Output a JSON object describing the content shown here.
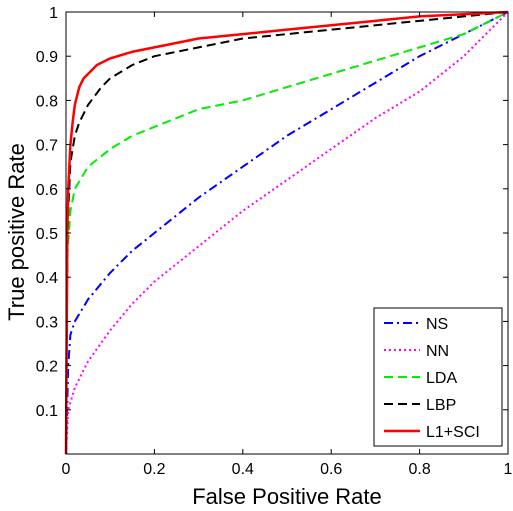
{
  "chart_data": {
    "type": "line",
    "xlabel": "False Positive Rate",
    "ylabel": "True positive Rate",
    "xlim": [
      0,
      1
    ],
    "ylim": [
      0,
      1
    ],
    "x_ticks": [
      0,
      0.2,
      0.4,
      0.6,
      0.8,
      1
    ],
    "y_ticks": [
      0.1,
      0.2,
      0.3,
      0.4,
      0.5,
      0.6,
      0.7,
      0.8,
      0.9,
      1
    ],
    "x_tick_labels": [
      "0",
      "0.2",
      "0.4",
      "0.6",
      "0.8",
      "1"
    ],
    "y_tick_labels": [
      "0.1",
      "0.2",
      "0.3",
      "0.4",
      "0.5",
      "0.6",
      "0.7",
      "0.8",
      "0.9",
      "1"
    ],
    "grid": false,
    "legend_position": "bottom-right",
    "series": [
      {
        "name": "NS",
        "color": "#0000ff",
        "style": "dash-dot",
        "x": [
          0,
          0.005,
          0.01,
          0.02,
          0.05,
          0.1,
          0.15,
          0.2,
          0.3,
          0.4,
          0.5,
          0.6,
          0.7,
          0.8,
          0.9,
          1
        ],
        "y": [
          0,
          0.2,
          0.27,
          0.3,
          0.35,
          0.41,
          0.46,
          0.5,
          0.58,
          0.65,
          0.72,
          0.78,
          0.84,
          0.9,
          0.95,
          1
        ]
      },
      {
        "name": "NN",
        "color": "#ff00ff",
        "style": "dotted",
        "x": [
          0,
          0.005,
          0.02,
          0.05,
          0.1,
          0.15,
          0.2,
          0.3,
          0.4,
          0.5,
          0.6,
          0.7,
          0.8,
          0.9,
          1
        ],
        "y": [
          0,
          0.1,
          0.15,
          0.21,
          0.28,
          0.34,
          0.39,
          0.47,
          0.55,
          0.62,
          0.69,
          0.76,
          0.82,
          0.9,
          1
        ]
      },
      {
        "name": "LDA",
        "color": "#00ee00",
        "style": "dashed",
        "x": [
          0,
          0.003,
          0.01,
          0.02,
          0.05,
          0.1,
          0.15,
          0.2,
          0.3,
          0.4,
          0.5,
          0.6,
          0.7,
          0.8,
          0.9,
          1
        ],
        "y": [
          0,
          0.45,
          0.55,
          0.6,
          0.65,
          0.69,
          0.72,
          0.74,
          0.78,
          0.8,
          0.83,
          0.86,
          0.89,
          0.92,
          0.95,
          1
        ]
      },
      {
        "name": "LBP",
        "color": "#000000",
        "style": "dashed",
        "x": [
          0,
          0.003,
          0.01,
          0.02,
          0.03,
          0.05,
          0.08,
          0.1,
          0.15,
          0.2,
          0.3,
          0.4,
          0.5,
          0.6,
          0.7,
          0.8,
          0.9,
          1
        ],
        "y": [
          0,
          0.5,
          0.66,
          0.72,
          0.75,
          0.79,
          0.83,
          0.85,
          0.88,
          0.9,
          0.92,
          0.94,
          0.95,
          0.96,
          0.97,
          0.98,
          0.99,
          1
        ]
      },
      {
        "name": "L1+SCI",
        "color": "#ff0000",
        "style": "solid",
        "x": [
          0,
          0.003,
          0.005,
          0.01,
          0.015,
          0.02,
          0.03,
          0.04,
          0.05,
          0.07,
          0.1,
          0.15,
          0.2,
          0.3,
          0.4,
          0.5,
          0.6,
          0.7,
          0.8,
          0.9,
          1
        ],
        "y": [
          0,
          0.5,
          0.6,
          0.7,
          0.75,
          0.79,
          0.83,
          0.85,
          0.86,
          0.88,
          0.895,
          0.91,
          0.92,
          0.94,
          0.95,
          0.96,
          0.97,
          0.98,
          0.99,
          0.995,
          1
        ]
      }
    ]
  }
}
